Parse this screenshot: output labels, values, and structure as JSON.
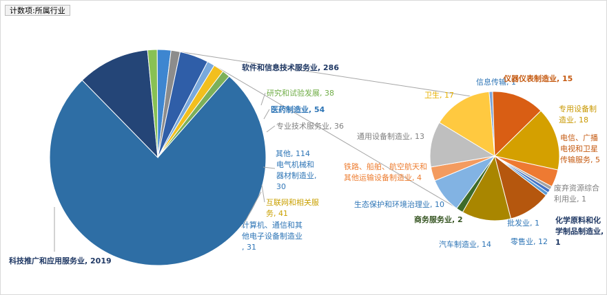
{
  "field_button": {
    "label": "计数项:所属行业"
  },
  "chart_data": {
    "type": "pie",
    "subtype": "bar-of-pie",
    "primary": {
      "slices": [
        {
          "label": "科技推广和应用服务业",
          "value": 2019,
          "color": "#2e6ea5",
          "text_color": "#1f3864",
          "bold": true
        },
        {
          "label": "软件和信息技术服务业",
          "value": 286,
          "color": "#244577",
          "text_color": "#1f3864",
          "bold": true
        },
        {
          "label": "研究和试验发展",
          "value": 38,
          "color": "#88c154",
          "text_color": "#70ad47",
          "bold": false
        },
        {
          "label": "医药制造业",
          "value": 54,
          "color": "#3e86d0",
          "text_color": "#2e75b6",
          "bold": true
        },
        {
          "label": "专业技术服务业",
          "value": 36,
          "color": "#8c8c8c",
          "text_color": "#7f7f7f",
          "bold": false
        },
        {
          "label": "其他",
          "value": 114,
          "color": "#2f5ea8",
          "text_color": "#2e75b6",
          "bold": false
        },
        {
          "label": "电气机械和器材制造业",
          "value": 30,
          "color": "#79a9dc",
          "text_color": "#2e75b6",
          "bold": false
        },
        {
          "label": "互联网和相关服务",
          "value": 41,
          "color": "#f2bf1e",
          "text_color": "#c9a000",
          "bold": false
        },
        {
          "label": "计算机、通信和其他电子设备制造业",
          "value": 31,
          "color": "#7cb05a",
          "text_color": "#2e75b6",
          "bold": false
        }
      ]
    },
    "secondary": {
      "slices": [
        {
          "label": "信息传输",
          "value": 1,
          "color": "#7ea6d8",
          "text_color": "#2e75b6",
          "bold": false
        },
        {
          "label": "仪器仪表制造业",
          "value": 15,
          "color": "#d95e14",
          "text_color": "#c55a11",
          "bold": true
        },
        {
          "label": "专用设备制造业",
          "value": 18,
          "color": "#d4a000",
          "text_color": "#c99800",
          "bold": false
        },
        {
          "label": "电信、广播电视和卫星传输服务",
          "value": 5,
          "color": "#ee7a32",
          "text_color": "#c55a11",
          "bold": false
        },
        {
          "label": "废弃资源综合利用业",
          "value": 1,
          "color": "#a5a5a5",
          "text_color": "#7f7f7f",
          "bold": false
        },
        {
          "label": "化学原料和化学制品制造业",
          "value": 1,
          "color": "#4472c4",
          "text_color": "#1f3864",
          "bold": true
        },
        {
          "label": "批发业",
          "value": 1,
          "color": "#5b9bd5",
          "text_color": "#2e75b6",
          "bold": false
        },
        {
          "label": "零售业",
          "value": 12,
          "color": "#b5570e",
          "text_color": "#2e75b6",
          "bold": false
        },
        {
          "label": "汽车制造业",
          "value": 14,
          "color": "#a98600",
          "text_color": "#2e75b6",
          "bold": false
        },
        {
          "label": "商务服务业",
          "value": 2,
          "color": "#3e6b2a",
          "text_color": "#375623",
          "bold": true
        },
        {
          "label": "生态保护和环境治理业",
          "value": 10,
          "color": "#82b3e3",
          "text_color": "#2e75b6",
          "bold": false
        },
        {
          "label": "铁路、船舶、航空航天和其他运输设备制造业",
          "value": 4,
          "color": "#f39b5f",
          "text_color": "#ed7d31",
          "bold": false
        },
        {
          "label": "通用设备制造业",
          "value": 13,
          "color": "#bfbfbf",
          "text_color": "#7f7f7f",
          "bold": false
        },
        {
          "label": "卫生",
          "value": 17,
          "color": "#ffc940",
          "text_color": "#e6b000",
          "bold": false
        }
      ]
    },
    "legend": "none"
  }
}
